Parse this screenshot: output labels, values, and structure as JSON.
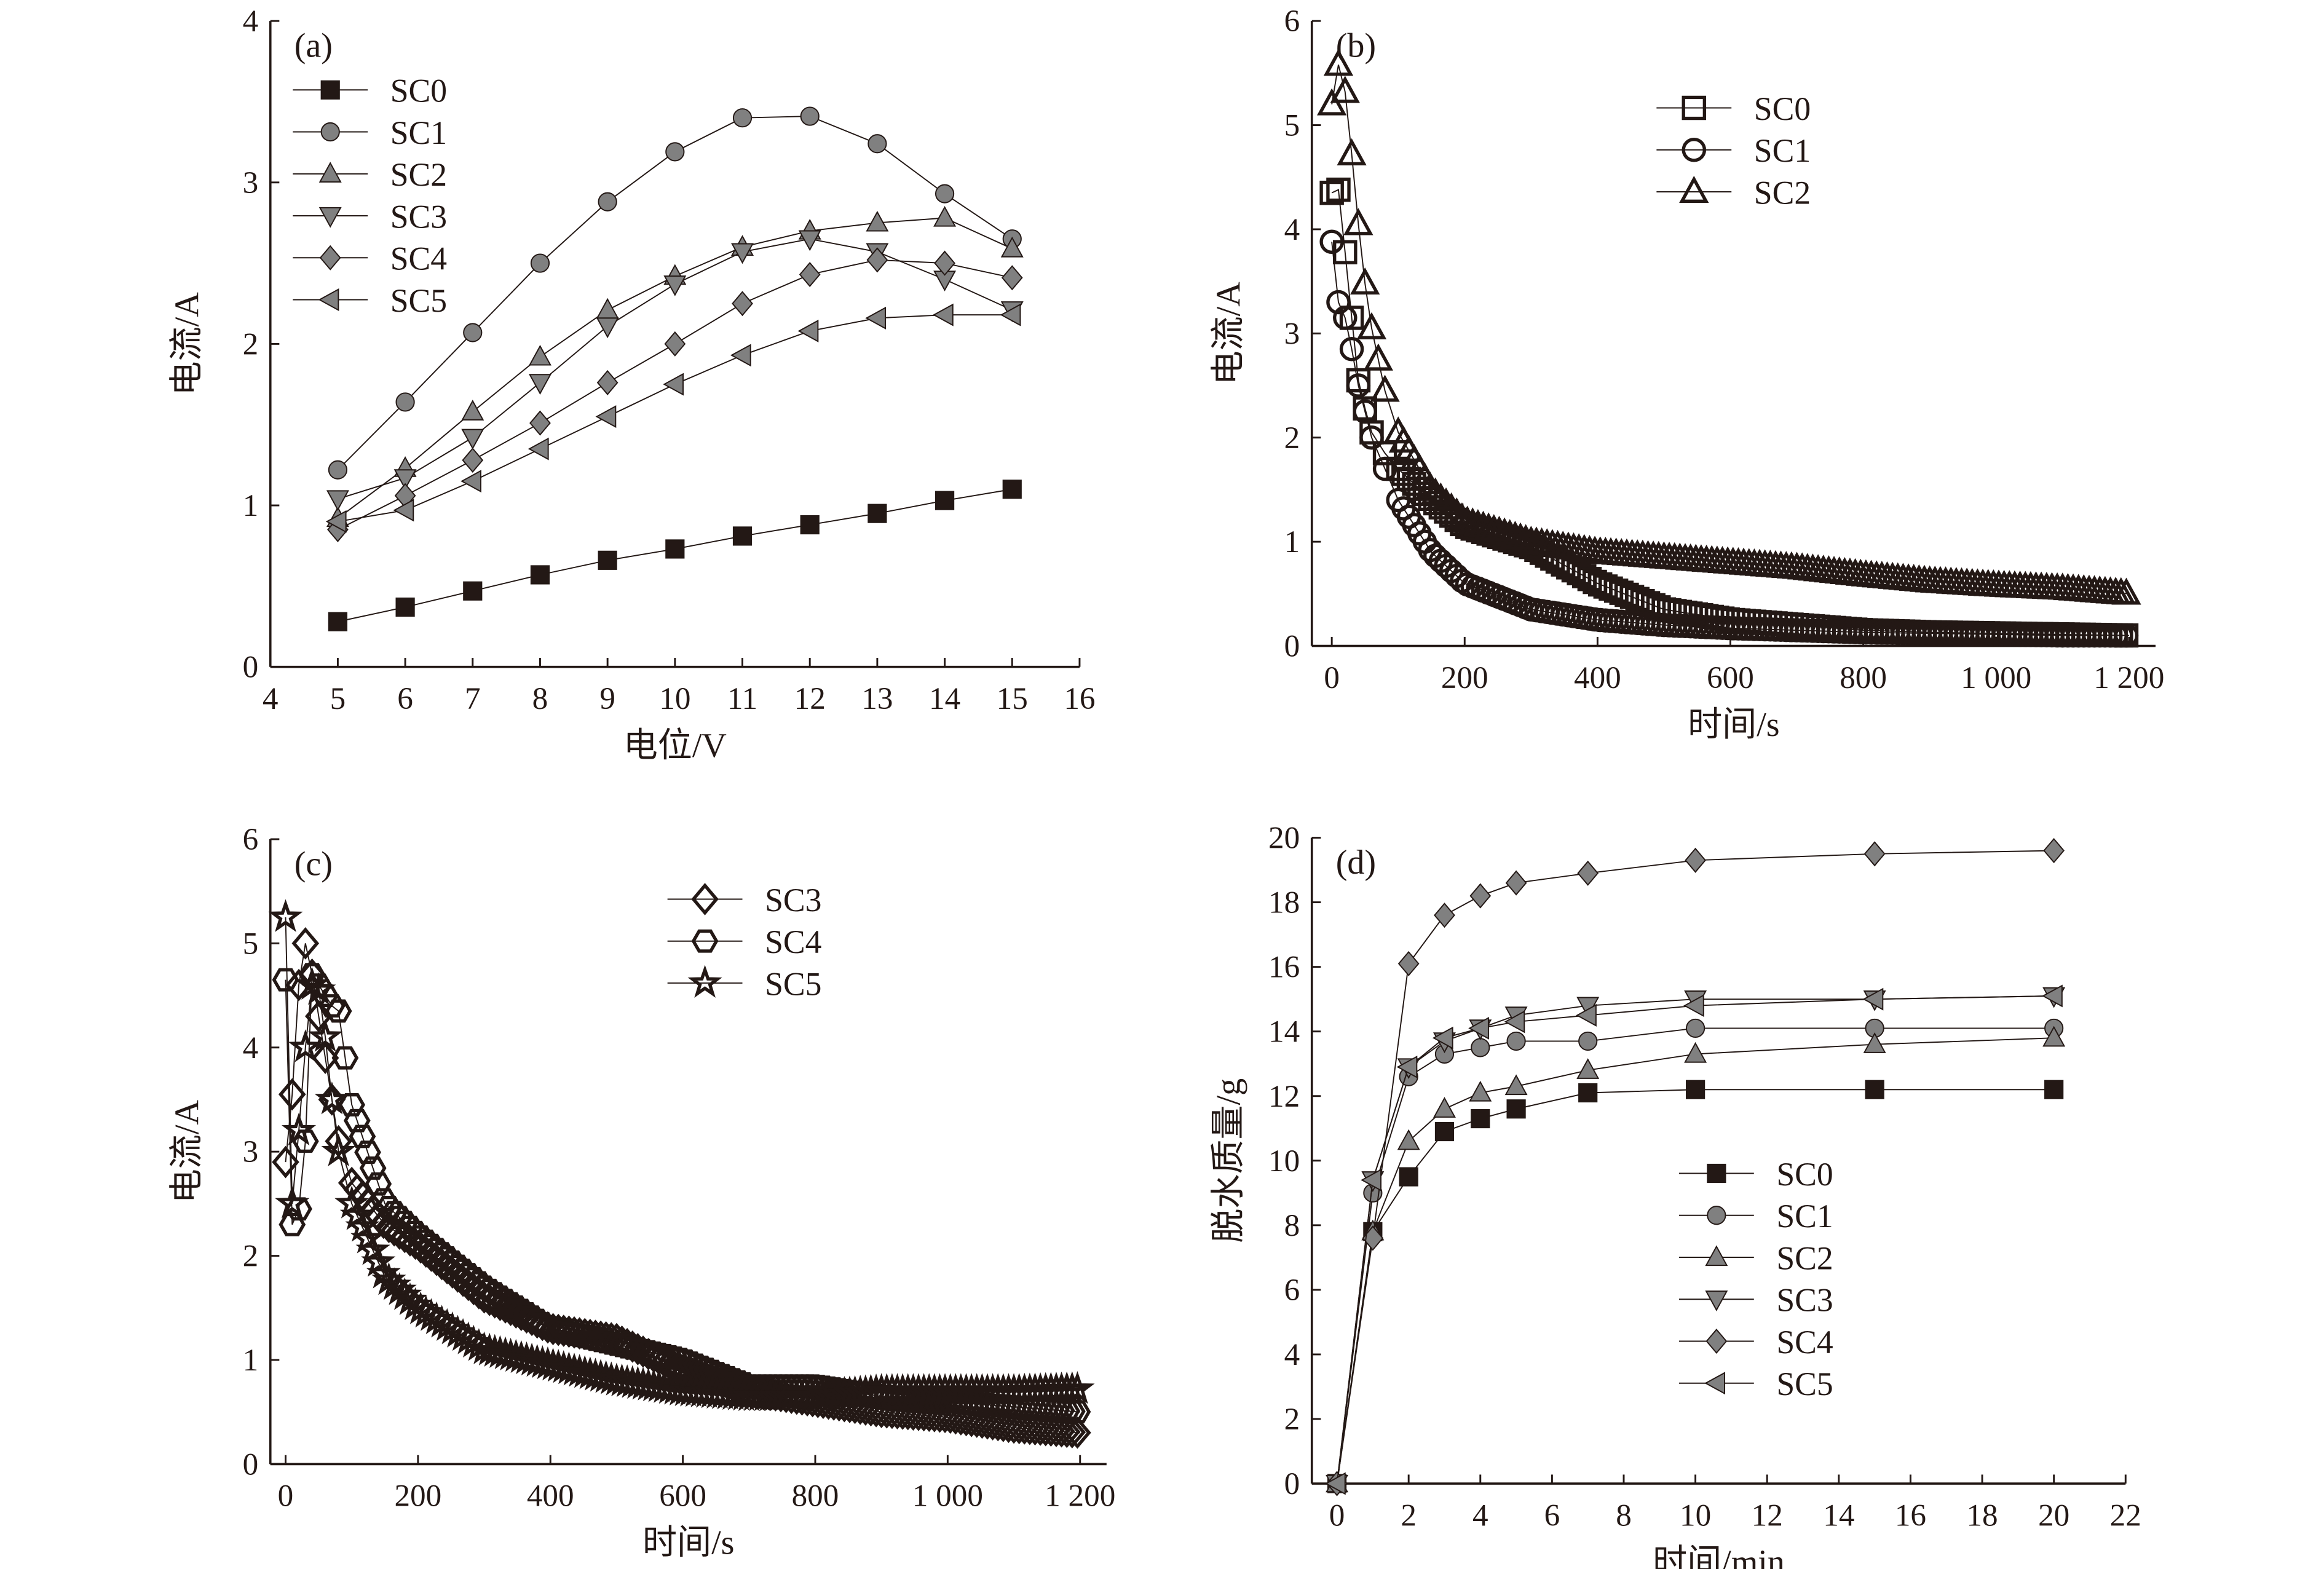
{
  "chart_data": [
    {
      "panel": "(a)",
      "type": "line",
      "xlabel": "电位/V",
      "ylabel": "电流/A",
      "xlim": [
        4,
        16
      ],
      "ylim": [
        0,
        4
      ],
      "xticks": [
        4,
        5,
        6,
        7,
        8,
        9,
        10,
        11,
        12,
        13,
        14,
        15,
        16
      ],
      "xtick_labels": [
        "4",
        "5",
        "6",
        "7",
        "8",
        "9",
        "10",
        "11",
        "12",
        "13",
        "14",
        "15",
        "16"
      ],
      "yticks": [
        0,
        1,
        2,
        3,
        4
      ],
      "ytick_labels": [
        "0",
        "1",
        "2",
        "3",
        "4"
      ],
      "marker_style": "filled",
      "legend": "top-left",
      "x": [
        5,
        6,
        7,
        8,
        9,
        10,
        11,
        12,
        13,
        14,
        15
      ],
      "series": [
        {
          "name": "SC0",
          "marker": "square",
          "values": [
            0.28,
            0.37,
            0.47,
            0.57,
            0.66,
            0.73,
            0.81,
            0.88,
            0.95,
            1.03,
            1.1
          ]
        },
        {
          "name": "SC1",
          "marker": "circle",
          "values": [
            1.22,
            1.64,
            2.07,
            2.5,
            2.88,
            3.19,
            3.4,
            3.41,
            3.24,
            2.93,
            2.65
          ]
        },
        {
          "name": "SC2",
          "marker": "triangle-up",
          "values": [
            0.92,
            1.23,
            1.58,
            1.92,
            2.21,
            2.42,
            2.6,
            2.7,
            2.75,
            2.78,
            2.59
          ]
        },
        {
          "name": "SC3",
          "marker": "triangle-down",
          "values": [
            1.04,
            1.17,
            1.42,
            1.76,
            2.11,
            2.37,
            2.57,
            2.65,
            2.57,
            2.4,
            2.21
          ]
        },
        {
          "name": "SC4",
          "marker": "diamond",
          "values": [
            0.85,
            1.06,
            1.28,
            1.51,
            1.76,
            2.0,
            2.25,
            2.43,
            2.52,
            2.5,
            2.41
          ]
        },
        {
          "name": "SC5",
          "marker": "triangle-left",
          "values": [
            0.9,
            0.97,
            1.15,
            1.35,
            1.55,
            1.75,
            1.93,
            2.08,
            2.16,
            2.18,
            2.18
          ]
        }
      ]
    },
    {
      "panel": "(b)",
      "type": "scatter",
      "xlabel": "时间/s",
      "ylabel": "电流/A",
      "xlim": [
        -30,
        1240
      ],
      "ylim": [
        0,
        6
      ],
      "xticks": [
        0,
        200,
        400,
        600,
        800,
        1000,
        1200
      ],
      "xtick_labels": [
        "0",
        "200",
        "400",
        "600",
        "800",
        "1 000",
        "1 200"
      ],
      "yticks": [
        0,
        1,
        2,
        3,
        4,
        5,
        6
      ],
      "ytick_labels": [
        "0",
        "1",
        "2",
        "3",
        "4",
        "5",
        "6"
      ],
      "marker_style": "hollow",
      "legend": "top-right",
      "series": [
        {
          "name": "SC0",
          "marker": "square",
          "x": [
            0,
            10,
            20,
            30,
            40,
            50,
            60,
            80,
            100,
            150,
            200,
            300,
            400,
            500,
            600,
            700,
            800,
            900,
            1000,
            1100,
            1200
          ],
          "values": [
            4.35,
            4.38,
            3.78,
            3.15,
            2.55,
            2.28,
            2.05,
            1.85,
            1.7,
            1.4,
            1.15,
            0.95,
            0.6,
            0.35,
            0.25,
            0.2,
            0.15,
            0.13,
            0.12,
            0.11,
            0.1
          ]
        },
        {
          "name": "SC1",
          "marker": "circle",
          "x": [
            0,
            10,
            20,
            30,
            40,
            50,
            60,
            80,
            100,
            150,
            200,
            300,
            400,
            500,
            600,
            700,
            800,
            900,
            1000,
            1100,
            1200
          ],
          "values": [
            3.88,
            3.3,
            3.15,
            2.85,
            2.5,
            2.25,
            2.0,
            1.7,
            1.4,
            0.9,
            0.6,
            0.35,
            0.25,
            0.2,
            0.17,
            0.15,
            0.13,
            0.12,
            0.11,
            0.1,
            0.1
          ]
        },
        {
          "name": "SC2",
          "marker": "triangle-up",
          "x": [
            0,
            10,
            20,
            30,
            40,
            50,
            60,
            70,
            80,
            100,
            150,
            200,
            300,
            400,
            500,
            600,
            700,
            800,
            900,
            1000,
            1100,
            1200
          ],
          "values": [
            5.2,
            5.58,
            5.32,
            4.72,
            4.05,
            3.48,
            3.05,
            2.75,
            2.45,
            2.05,
            1.5,
            1.2,
            1.0,
            0.9,
            0.85,
            0.8,
            0.75,
            0.68,
            0.62,
            0.58,
            0.55,
            0.5
          ]
        }
      ]
    },
    {
      "panel": "(c)",
      "type": "scatter",
      "xlabel": "时间/s",
      "ylabel": "电流/A",
      "xlim": [
        -23,
        1240
      ],
      "ylim": [
        0,
        6
      ],
      "xticks": [
        0,
        200,
        400,
        600,
        800,
        1000,
        1200
      ],
      "xtick_labels": [
        "0",
        "200",
        "400",
        "600",
        "800",
        "1 000",
        "1 200"
      ],
      "yticks": [
        0,
        1,
        2,
        3,
        4,
        5,
        6
      ],
      "ytick_labels": [
        "0",
        "1",
        "2",
        "3",
        "4",
        "5",
        "6"
      ],
      "marker_style": "hollow",
      "legend": "top-right",
      "series": [
        {
          "name": "SC3",
          "marker": "diamond",
          "x": [
            0,
            10,
            20,
            30,
            40,
            50,
            60,
            70,
            80,
            100,
            150,
            200,
            300,
            400,
            500,
            600,
            700,
            800,
            900,
            1000,
            1100,
            1200
          ],
          "values": [
            2.9,
            3.55,
            4.6,
            5.0,
            4.7,
            4.3,
            3.9,
            3.5,
            3.1,
            2.7,
            2.3,
            2.1,
            1.6,
            1.3,
            1.2,
            0.9,
            0.7,
            0.6,
            0.5,
            0.45,
            0.35,
            0.3
          ]
        },
        {
          "name": "SC4",
          "marker": "hexagon",
          "x": [
            0,
            10,
            20,
            30,
            40,
            50,
            60,
            70,
            80,
            90,
            100,
            150,
            200,
            300,
            400,
            500,
            600,
            700,
            800,
            900,
            1000,
            1100,
            1200
          ],
          "values": [
            4.65,
            2.3,
            2.45,
            3.1,
            4.7,
            4.6,
            4.5,
            4.4,
            4.35,
            3.9,
            3.45,
            2.5,
            2.2,
            1.7,
            1.3,
            1.15,
            1.0,
            0.75,
            0.75,
            0.65,
            0.6,
            0.55,
            0.5
          ]
        },
        {
          "name": "SC5",
          "marker": "star",
          "x": [
            0,
            10,
            20,
            30,
            40,
            50,
            60,
            70,
            80,
            100,
            150,
            200,
            300,
            400,
            500,
            600,
            700,
            800,
            900,
            1000,
            1100,
            1200
          ],
          "values": [
            5.25,
            2.5,
            3.2,
            4.0,
            4.6,
            4.55,
            4.1,
            3.5,
            3.0,
            2.5,
            1.8,
            1.5,
            1.1,
            0.95,
            0.8,
            0.7,
            0.65,
            0.65,
            0.7,
            0.7,
            0.7,
            0.72
          ]
        }
      ]
    },
    {
      "panel": "(d)",
      "type": "line",
      "xlabel": "时间/min",
      "ylabel": "脱水质量/g",
      "xlim": [
        -0.7,
        22
      ],
      "ylim": [
        0,
        20
      ],
      "xticks": [
        0,
        2,
        4,
        6,
        8,
        10,
        12,
        14,
        16,
        18,
        20,
        22
      ],
      "xtick_labels": [
        "0",
        "2",
        "4",
        "6",
        "8",
        "10",
        "12",
        "14",
        "16",
        "18",
        "20",
        "22"
      ],
      "yticks": [
        0,
        2,
        4,
        6,
        8,
        10,
        12,
        14,
        16,
        18,
        20
      ],
      "ytick_labels": [
        "0",
        "2",
        "4",
        "6",
        "8",
        "10",
        "12",
        "14",
        "16",
        "18",
        "20"
      ],
      "marker_style": "filled",
      "legend": "bottom-center",
      "x": [
        0,
        1,
        2,
        3,
        4,
        5,
        7,
        10,
        15,
        20
      ],
      "series": [
        {
          "name": "SC0",
          "marker": "square",
          "values": [
            0,
            7.8,
            9.5,
            10.9,
            11.3,
            11.6,
            12.1,
            12.2,
            12.2,
            12.2
          ]
        },
        {
          "name": "SC1",
          "marker": "circle",
          "values": [
            0,
            9.0,
            12.6,
            13.3,
            13.5,
            13.7,
            13.7,
            14.1,
            14.1,
            14.1
          ]
        },
        {
          "name": "SC2",
          "marker": "triangle-up",
          "values": [
            0,
            7.8,
            10.6,
            11.6,
            12.1,
            12.3,
            12.8,
            13.3,
            13.6,
            13.8
          ]
        },
        {
          "name": "SC3",
          "marker": "triangle-down",
          "values": [
            0,
            9.4,
            12.9,
            13.7,
            14.1,
            14.5,
            14.8,
            15.0,
            15.0,
            15.1
          ]
        },
        {
          "name": "SC4",
          "marker": "diamond",
          "values": [
            0,
            7.6,
            16.1,
            17.6,
            18.2,
            18.6,
            18.9,
            19.3,
            19.5,
            19.6
          ]
        },
        {
          "name": "SC5",
          "marker": "triangle-left",
          "values": [
            0,
            9.4,
            12.9,
            13.8,
            14.1,
            14.3,
            14.5,
            14.8,
            15.0,
            15.1
          ]
        }
      ]
    }
  ],
  "colors": {
    "ink": "#231815",
    "marker_fill_gray": "#808080"
  }
}
